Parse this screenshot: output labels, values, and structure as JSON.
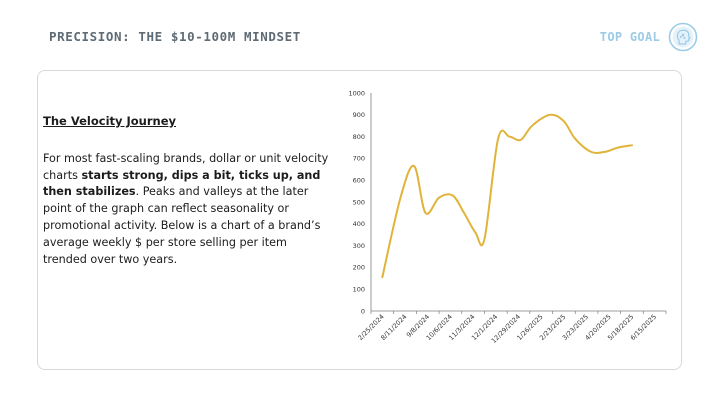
{
  "header": {
    "title": "PRECISION: THE $10-100M MINDSET",
    "brand_text": "TOP GOAL",
    "brand_icon": "head-profile-icon"
  },
  "colors": {
    "title": "#5f6b74",
    "brand": "#9ccbe6",
    "line": "#e0b43a",
    "axis": "#7f7f7f"
  },
  "text_panel": {
    "heading": "The Velocity Journey",
    "para_part1": "For most fast-scaling brands, dollar or unit velocity charts ",
    "para_bold": "starts strong, dips a bit, ticks up, and then stabilizes",
    "para_part2": ". Peaks and valleys at the later point of the graph can reflect seasonality or promotional activity. Below is a chart of a brand’s average weekly $ per store selling per item trended over two years."
  },
  "chart_data": {
    "type": "line",
    "title": "",
    "xlabel": "",
    "ylabel": "",
    "ylim": [
      0,
      1000
    ],
    "yticks": [
      0,
      100,
      200,
      300,
      400,
      500,
      600,
      700,
      800,
      900,
      1000
    ],
    "grid": false,
    "legend": "none",
    "categories": [
      "2/25/2024",
      "8/11/2024",
      "9/8/2024",
      "10/6/2024",
      "11/3/2024",
      "12/1/2024",
      "12/29/2024",
      "1/26/2025",
      "2/23/2025",
      "3/23/2025",
      "4/20/2025",
      "5/18/2025",
      "6/15/2025"
    ],
    "series": [
      {
        "x": [
          1.0,
          1.8,
          2.4,
          2.9,
          3.5,
          4.1,
          4.6,
          5.1,
          5.5,
          6.1,
          6.6,
          7.1,
          7.6,
          8.4,
          9.0,
          9.5,
          10.2,
          10.8,
          11.4,
          12.0
        ],
        "values": [
          155,
          520,
          665,
          450,
          520,
          530,
          450,
          360,
          330,
          790,
          800,
          785,
          850,
          900,
          870,
          790,
          730,
          730,
          750,
          760
        ]
      }
    ]
  }
}
